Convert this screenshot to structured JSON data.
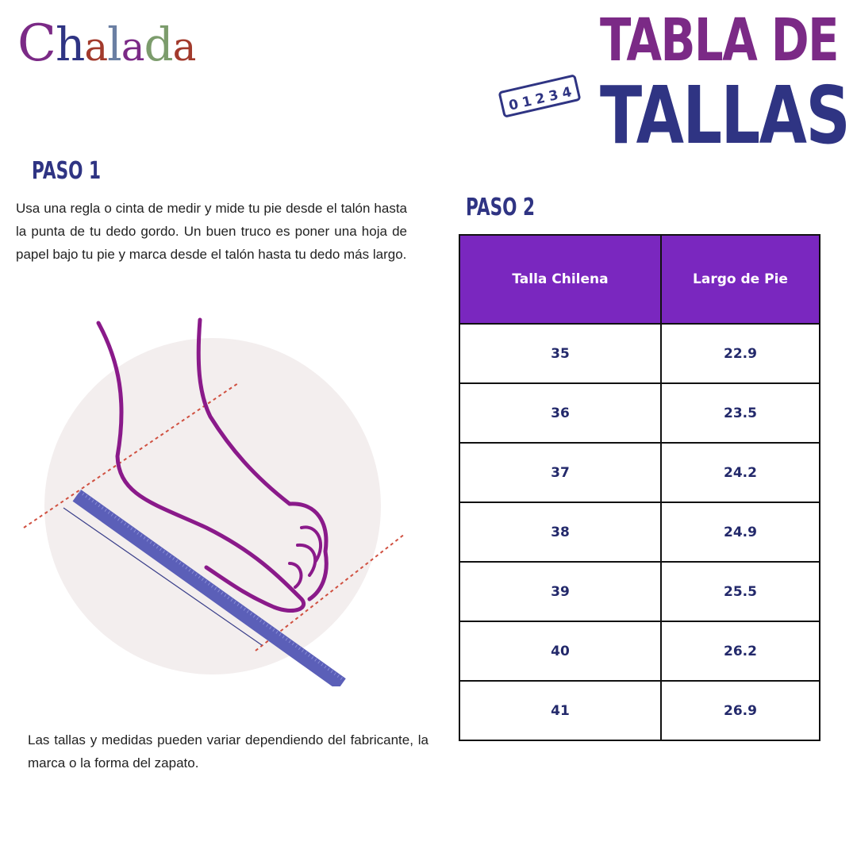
{
  "logo": {
    "text": "Chalada",
    "letters": [
      "C",
      "h",
      "a",
      "l",
      "a",
      "d",
      "a"
    ],
    "colors": [
      "#7b2a86",
      "#2f3483",
      "#a23a2c",
      "#6b7fa3",
      "#7b2a86",
      "#7c9c6c",
      "#a23a2c"
    ]
  },
  "title": {
    "line1": "TABLA DE",
    "line2": "TALLAS",
    "ruler_digits": [
      "0",
      "1",
      "2",
      "3",
      "4"
    ]
  },
  "step1": {
    "heading": "PASO 1",
    "text": "Usa una regla o cinta de medir y mide tu pie desde el talón hasta la punta de tu dedo gordo. Un buen truco es poner una hoja de papel bajo tu pie y marca desde el talón hasta tu dedo más largo."
  },
  "step2": {
    "heading": "PASO 2"
  },
  "table": {
    "headers": [
      "Talla Chilena",
      "Largo de Pie"
    ],
    "rows": [
      [
        "35",
        "22.9"
      ],
      [
        "36",
        "23.5"
      ],
      [
        "37",
        "24.2"
      ],
      [
        "38",
        "24.9"
      ],
      [
        "39",
        "25.5"
      ],
      [
        "40",
        "26.2"
      ],
      [
        "41",
        "26.9"
      ]
    ]
  },
  "note": "Las tallas y medidas pueden variar dependiendo del fabricante, la marca o la forma del zapato.",
  "colors": {
    "header": "#7a27bf",
    "purple": "#7b2a86",
    "navy": "#2f3483"
  }
}
